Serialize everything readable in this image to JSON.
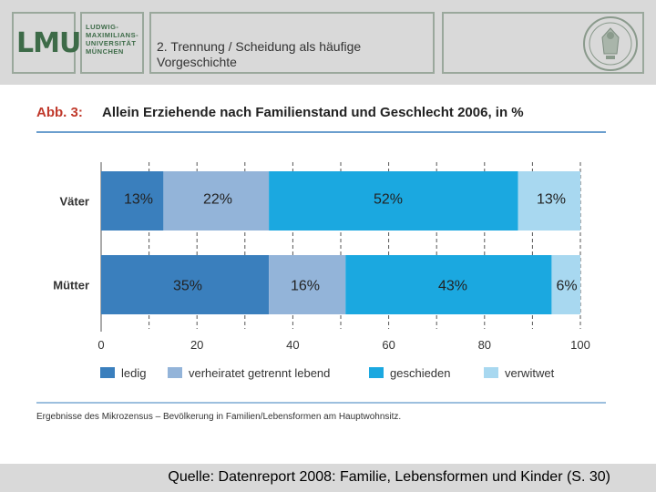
{
  "header": {
    "logo": "LMU",
    "university_lines": [
      "LUDWIG-",
      "MAXIMILIANS-",
      "UNIVERSITÄT",
      "MÜNCHEN"
    ],
    "slide_title_line1": "2. Trennung / Scheidung als häufige",
    "slide_title_line2": "Vorgeschichte"
  },
  "footer": {
    "source": "Quelle: Datenreport 2008: Familie, Lebensformen und Kinder (S. 30)"
  },
  "colors": {
    "ledig": "#3a7fbd",
    "verheiratet": "#93b4d9",
    "geschieden": "#1ba8e0",
    "verwitwet": "#a8d8f0",
    "title_red": "#c0392b"
  },
  "chart_data": {
    "type": "bar",
    "orientation": "horizontal",
    "stacked": true,
    "title_prefix": "Abb. 3:",
    "title": "Allein Erziehende nach Familienstand und Geschlecht 2006, in %",
    "categories": [
      "Väter",
      "Mütter"
    ],
    "series": [
      {
        "name": "ledig",
        "values": [
          13,
          35
        ],
        "labels": [
          "13%",
          "35%"
        ]
      },
      {
        "name": "verheiratet getrennt lebend",
        "values": [
          22,
          16
        ],
        "labels": [
          "22%",
          "16%"
        ]
      },
      {
        "name": "geschieden",
        "values": [
          52,
          43
        ],
        "labels": [
          "52%",
          "43%"
        ]
      },
      {
        "name": "verwitwet",
        "values": [
          13,
          6
        ],
        "labels": [
          "13%",
          "6%"
        ]
      }
    ],
    "xlim": [
      0,
      100
    ],
    "xticks": [
      0,
      20,
      40,
      60,
      80,
      100
    ],
    "legend_position": "bottom",
    "note": "Ergebnisse des Mikrozensus – Bevölkerung in Familien/Lebensformen am Hauptwohnsitz."
  }
}
